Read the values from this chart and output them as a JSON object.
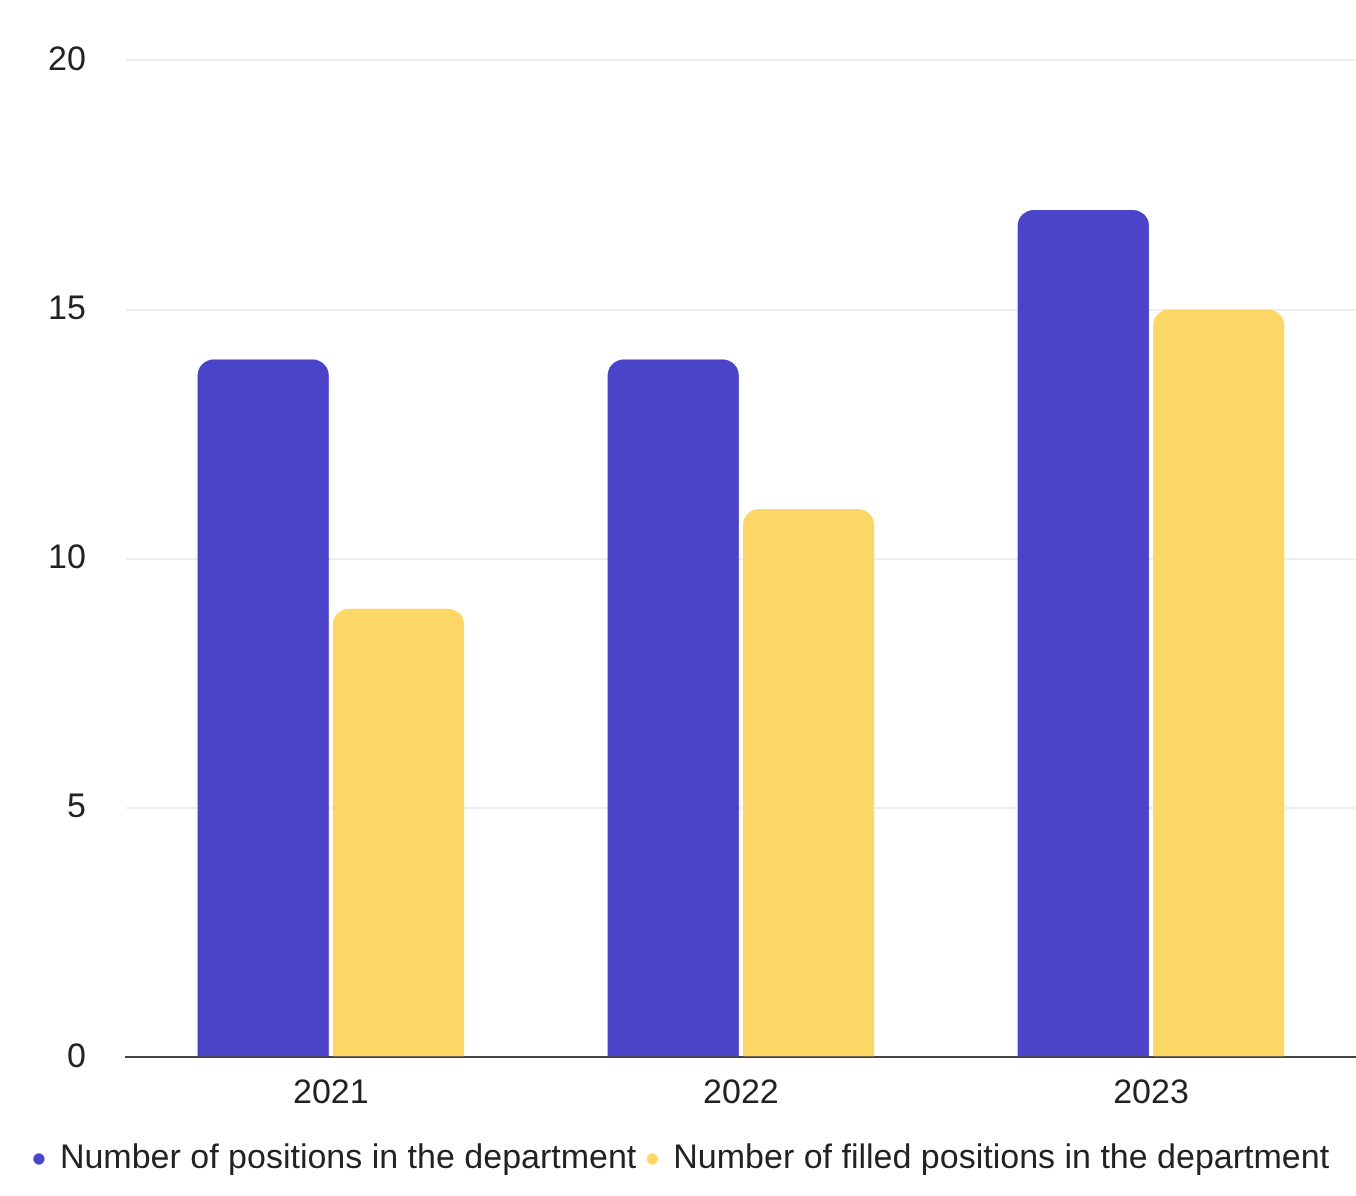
{
  "chart_data": {
    "type": "bar",
    "categories": [
      "2021",
      "2022",
      "2023"
    ],
    "series": [
      {
        "name": "Number of positions in the department",
        "color": "#4b44c8",
        "values": [
          14,
          14,
          17
        ]
      },
      {
        "name": "Number of filled positions in the department",
        "color": "#fdd766",
        "values": [
          9,
          11,
          15
        ]
      }
    ],
    "ylim": [
      0,
      20
    ],
    "yticks": [
      0,
      5,
      10,
      15,
      20
    ],
    "grid": "y",
    "legend": "bottom"
  }
}
